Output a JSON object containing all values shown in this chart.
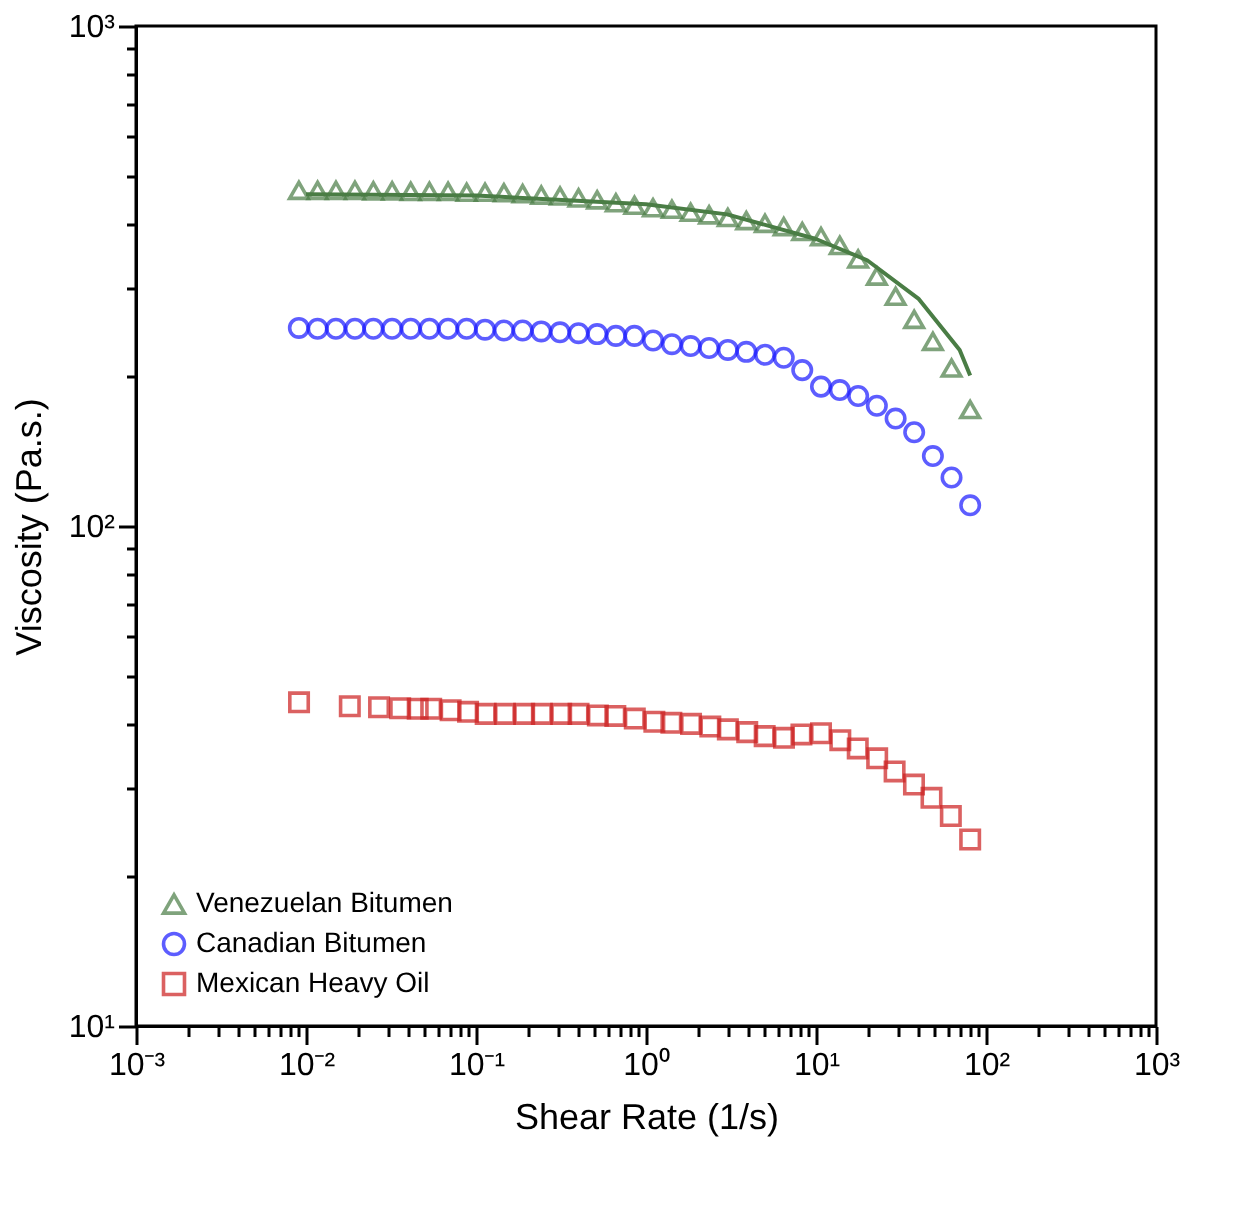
{
  "chart_data": {
    "type": "scatter",
    "xlabel": "Shear Rate (1/s)",
    "ylabel": "Viscosity (Pa.s.)",
    "log": "xy",
    "grid": false,
    "legend": "bottom left",
    "xlim": [
      0.001,
      1000
    ],
    "ylim": [
      10,
      1000
    ],
    "xticks": [
      {
        "value": 0.001,
        "label": "10⁻³"
      },
      {
        "value": 0.002,
        "label": null
      },
      {
        "value": 0.003,
        "label": null
      },
      {
        "value": 0.004,
        "label": null
      },
      {
        "value": 0.005,
        "label": null
      },
      {
        "value": 0.006,
        "label": null
      },
      {
        "value": 0.007,
        "label": null
      },
      {
        "value": 0.008,
        "label": null
      },
      {
        "value": 0.009,
        "label": null
      },
      {
        "value": 0.01,
        "label": "10⁻²"
      },
      {
        "value": 0.02,
        "label": null
      },
      {
        "value": 0.03,
        "label": null
      },
      {
        "value": 0.04,
        "label": null
      },
      {
        "value": 0.05,
        "label": null
      },
      {
        "value": 0.06,
        "label": null
      },
      {
        "value": 0.07,
        "label": null
      },
      {
        "value": 0.08,
        "label": null
      },
      {
        "value": 0.09,
        "label": null
      },
      {
        "value": 0.1,
        "label": "10⁻¹"
      },
      {
        "value": 0.2,
        "label": null
      },
      {
        "value": 0.3,
        "label": null
      },
      {
        "value": 0.4,
        "label": null
      },
      {
        "value": 0.5,
        "label": null
      },
      {
        "value": 0.6,
        "label": null
      },
      {
        "value": 0.7,
        "label": null
      },
      {
        "value": 0.8,
        "label": null
      },
      {
        "value": 0.9,
        "label": null
      },
      {
        "value": 1,
        "label": "10⁰"
      },
      {
        "value": 2,
        "label": null
      },
      {
        "value": 3,
        "label": null
      },
      {
        "value": 4,
        "label": null
      },
      {
        "value": 5,
        "label": null
      },
      {
        "value": 6,
        "label": null
      },
      {
        "value": 7,
        "label": null
      },
      {
        "value": 8,
        "label": null
      },
      {
        "value": 9,
        "label": null
      },
      {
        "value": 10,
        "label": "10¹"
      },
      {
        "value": 20,
        "label": null
      },
      {
        "value": 30,
        "label": null
      },
      {
        "value": 40,
        "label": null
      },
      {
        "value": 50,
        "label": null
      },
      {
        "value": 60,
        "label": null
      },
      {
        "value": 70,
        "label": null
      },
      {
        "value": 80,
        "label": null
      },
      {
        "value": 90,
        "label": null
      },
      {
        "value": 100,
        "label": "10²"
      },
      {
        "value": 200,
        "label": null
      },
      {
        "value": 300,
        "label": null
      },
      {
        "value": 400,
        "label": null
      },
      {
        "value": 500,
        "label": null
      },
      {
        "value": 600,
        "label": null
      },
      {
        "value": 700,
        "label": null
      },
      {
        "value": 800,
        "label": null
      },
      {
        "value": 900,
        "label": null
      },
      {
        "value": 1000,
        "label": "10³"
      }
    ],
    "yticks": [
      {
        "value": 10,
        "label": "10¹"
      },
      {
        "value": 20,
        "label": null
      },
      {
        "value": 30,
        "label": null
      },
      {
        "value": 40,
        "label": null
      },
      {
        "value": 50,
        "label": null
      },
      {
        "value": 60,
        "label": null
      },
      {
        "value": 70,
        "label": null
      },
      {
        "value": 80,
        "label": null
      },
      {
        "value": 90,
        "label": null
      },
      {
        "value": 100,
        "label": "10²"
      },
      {
        "value": 200,
        "label": null
      },
      {
        "value": 300,
        "label": null
      },
      {
        "value": 400,
        "label": null
      },
      {
        "value": 500,
        "label": null
      },
      {
        "value": 600,
        "label": null
      },
      {
        "value": 700,
        "label": null
      },
      {
        "value": 800,
        "label": null
      },
      {
        "value": 900,
        "label": null
      },
      {
        "value": 1000,
        "label": "10³"
      }
    ],
    "x": [
      0.00908,
      0.0117,
      0.015,
      0.0194,
      0.0249,
      0.0321,
      0.0413,
      0.0532,
      0.0685,
      0.0881,
      0.113,
      0.146,
      0.188,
      0.242,
      0.312,
      0.401,
      0.516,
      0.665,
      0.855,
      1.1,
      1.42,
      1.83,
      2.35,
      3.03,
      3.89,
      5.01,
      6.46,
      8.3,
      10.7,
      13.8,
      17.7,
      22.8,
      29.4,
      37.8,
      48.7,
      62.7,
      80.7
    ],
    "series": [
      {
        "name": "Venezuelan Bitumen",
        "color": "#4a7d45",
        "marker": "triangle",
        "values": [
          469,
          469,
          469,
          469,
          468,
          468,
          467,
          467,
          467,
          465,
          465,
          464,
          462,
          459,
          457,
          453,
          449,
          443,
          438,
          433,
          430,
          424,
          419,
          414,
          408,
          403,
          397,
          388,
          379,
          364,
          342,
          316,
          288,
          259,
          234,
          207,
          171
        ]
      },
      {
        "name": "Canadian Bitumen",
        "color": "#1a1aff",
        "marker": "circle",
        "values": [
          249,
          248,
          248,
          248,
          248,
          248,
          248,
          248,
          248,
          248,
          247,
          246,
          246,
          245,
          244,
          243,
          242,
          240,
          240,
          235,
          231,
          229,
          227,
          225,
          223,
          220,
          217,
          205,
          190,
          187,
          182,
          174,
          164,
          154,
          138,
          125,
          110
        ]
      },
      {
        "name": "Mexican Heavy Oil",
        "color": "#cc1f1f",
        "marker": "square",
        "x": [
          0.0091,
          0.0181,
          0.0269,
          0.0358,
          0.0454,
          0.0545,
          0.0709,
          0.0898,
          0.114,
          0.148,
          0.192,
          0.244,
          0.317,
          0.401,
          0.521,
          0.66,
          0.859,
          1.12,
          1.41,
          1.84,
          2.39,
          3.03,
          3.94,
          4.99,
          6.48,
          8.21,
          10.7,
          13.9,
          17.6,
          22.9,
          29,
          37.7,
          47.8,
          62.1,
          80.7
        ],
        "values": [
          44.4,
          43.6,
          43.4,
          43.2,
          43.1,
          43.1,
          42.8,
          42.5,
          42.1,
          42.1,
          42.1,
          42.1,
          42.1,
          42.1,
          41.8,
          41.7,
          41.2,
          40.6,
          40.4,
          40.2,
          39.7,
          39.2,
          38.7,
          38,
          37.7,
          38.3,
          38.5,
          37.3,
          35.9,
          34.3,
          32.3,
          30.4,
          28.6,
          26.3,
          23.6
        ]
      },
      {
        "type": "line",
        "color": "#4a7d45",
        "marker": "none",
        "x": [
          0.01,
          0.1,
          1,
          3,
          10,
          20,
          40,
          70,
          80.7
        ],
        "values": [
          461,
          458,
          440,
          420,
          375,
          340,
          285,
          225,
          200
        ]
      }
    ]
  }
}
